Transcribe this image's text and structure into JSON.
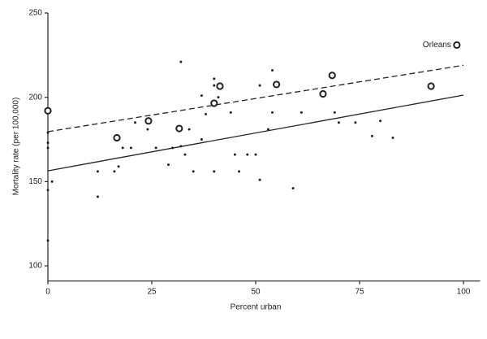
{
  "chart_data": {
    "type": "scatter",
    "x_label": "Percent urban",
    "y_label": "Mortality rate (per 100,000)",
    "xlim": [
      0,
      104
    ],
    "ylim": [
      91,
      250
    ],
    "xticks": [
      0,
      25,
      50,
      75,
      100
    ],
    "yticks": [
      100,
      150,
      200,
      250
    ],
    "color": "#222222",
    "series": [
      {
        "marker": "dot",
        "x": [
          0,
          0,
          0,
          0,
          0,
          1,
          12,
          12,
          16,
          17,
          18,
          20,
          21,
          24,
          26,
          29,
          30,
          32,
          32,
          33,
          34,
          35,
          37,
          37,
          38,
          40,
          40,
          40,
          41,
          44,
          45,
          46,
          48,
          50,
          51,
          51,
          53,
          54,
          54,
          59,
          61,
          69,
          70,
          74,
          78,
          80,
          83
        ],
        "values": [
          179,
          173,
          170,
          145,
          115,
          150,
          141,
          156,
          156,
          159,
          170,
          170,
          185,
          181,
          170,
          160,
          170,
          221,
          171,
          166,
          181,
          156,
          201,
          175,
          190,
          207,
          211,
          156,
          200,
          191,
          166,
          156,
          166,
          166,
          151,
          207,
          181,
          216,
          191,
          146,
          191,
          191,
          185,
          185,
          177,
          186,
          176
        ]
      },
      {
        "marker": "circle",
        "x": [
          0,
          16.6,
          24.2,
          31.6,
          40,
          41.4,
          55,
          66.2,
          68.4,
          92.2,
          98.4
        ],
        "values": [
          192,
          176,
          186,
          181.5,
          196.5,
          206.6,
          207.6,
          202,
          213,
          206.6,
          231
        ]
      }
    ],
    "lines": [
      {
        "style": "dashed",
        "x": [
          0,
          100
        ],
        "values": [
          179.6,
          219
        ]
      },
      {
        "style": "solid",
        "x": [
          0,
          100
        ],
        "values": [
          156.4,
          201.3
        ]
      }
    ],
    "annotation": "Orleans"
  }
}
